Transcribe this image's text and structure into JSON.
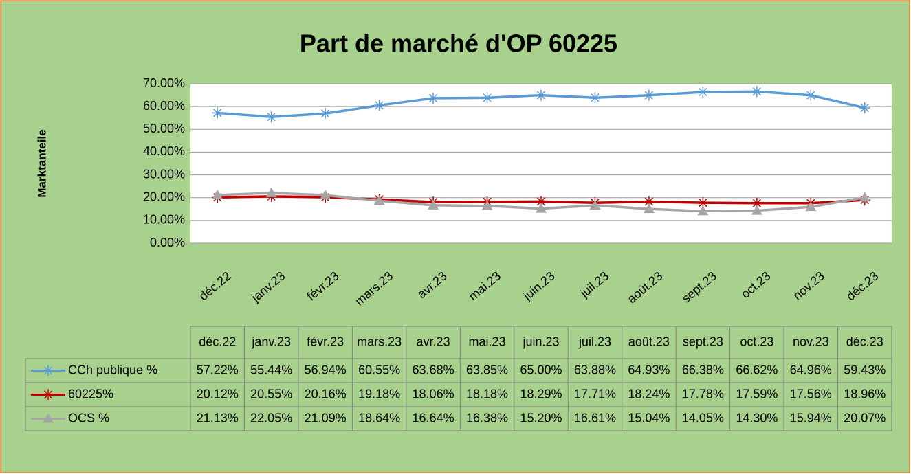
{
  "chart_data": {
    "type": "line",
    "title": "Part de marché d'OP 60225",
    "y_label": "Marktanteile",
    "categories": [
      "déc.22",
      "janv.23",
      "févr.23",
      "mars.23",
      "avr.23",
      "mai.23",
      "juin.23",
      "juil.23",
      "août.23",
      "sept.23",
      "oct.23",
      "nov.23",
      "déc.23"
    ],
    "series": [
      {
        "name": "CCh publique %",
        "color": "#5b9bd5",
        "marker": "star",
        "values": [
          57.22,
          55.44,
          56.94,
          60.55,
          63.68,
          63.85,
          65.0,
          63.88,
          64.93,
          66.38,
          66.62,
          64.96,
          59.43
        ],
        "value_labels": [
          "57.22%",
          "55.44%",
          "56.94%",
          "60.55%",
          "63.68%",
          "63.85%",
          "65.00%",
          "63.88%",
          "64.93%",
          "66.38%",
          "66.62%",
          "64.96%",
          "59.43%"
        ]
      },
      {
        "name": "60225%",
        "color": "#c00000",
        "marker": "star",
        "values": [
          20.12,
          20.55,
          20.16,
          19.18,
          18.06,
          18.18,
          18.29,
          17.71,
          18.24,
          17.78,
          17.59,
          17.56,
          18.96
        ],
        "value_labels": [
          "20.12%",
          "20.55%",
          "20.16%",
          "19.18%",
          "18.06%",
          "18.18%",
          "18.29%",
          "17.71%",
          "18.24%",
          "17.78%",
          "17.59%",
          "17.56%",
          "18.96%"
        ]
      },
      {
        "name": "OCS %",
        "color": "#a5a5a5",
        "marker": "triangle",
        "values": [
          21.13,
          22.05,
          21.09,
          18.64,
          16.64,
          16.38,
          15.2,
          16.61,
          15.04,
          14.05,
          14.3,
          15.94,
          20.07
        ],
        "value_labels": [
          "21.13%",
          "22.05%",
          "21.09%",
          "18.64%",
          "16.64%",
          "16.38%",
          "15.20%",
          "16.61%",
          "15.04%",
          "14.05%",
          "14.30%",
          "15.94%",
          "20.07%"
        ]
      }
    ],
    "ylim": [
      0,
      70
    ],
    "yticks": [
      {
        "value": 0,
        "label": "0.00%"
      },
      {
        "value": 10,
        "label": "10.00%"
      },
      {
        "value": 20,
        "label": "20.00%"
      },
      {
        "value": 30,
        "label": "30.00%"
      },
      {
        "value": 40,
        "label": "40.00%"
      },
      {
        "value": 50,
        "label": "50.00%"
      },
      {
        "value": 60,
        "label": "60.00%"
      },
      {
        "value": 70,
        "label": "70.00%"
      }
    ],
    "grid": true,
    "data_table": true
  }
}
